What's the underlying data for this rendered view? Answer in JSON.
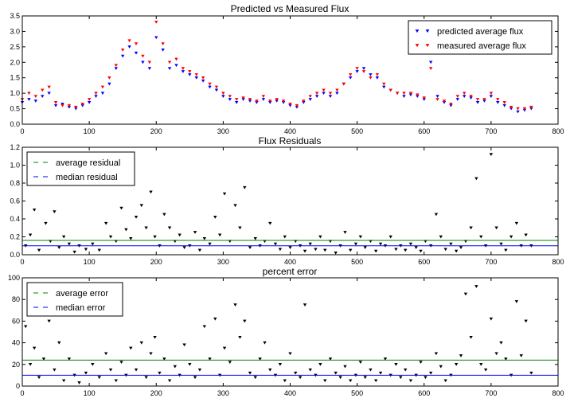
{
  "chart_data": [
    {
      "type": "scatter",
      "title": "Predicted vs Measured Flux",
      "xlim": [
        0,
        800
      ],
      "ylim": [
        0,
        3.5
      ],
      "xticks": [
        0,
        100,
        200,
        300,
        400,
        500,
        600,
        700,
        800
      ],
      "yticks": [
        0.0,
        0.5,
        1.0,
        1.5,
        2.0,
        2.5,
        3.0,
        3.5
      ],
      "ytick_labels": [
        "0.0",
        "0.5",
        "1.0",
        "1.5",
        "2.0",
        "2.5",
        "3.0",
        "3.5"
      ],
      "legend_position": "top-right",
      "series": [
        {
          "name": "predicted average flux",
          "color": "#0000ff",
          "marker": "triangle-down",
          "x": [
            0,
            10,
            20,
            30,
            40,
            50,
            60,
            70,
            80,
            90,
            100,
            110,
            120,
            130,
            140,
            150,
            160,
            170,
            180,
            190,
            200,
            210,
            220,
            230,
            240,
            250,
            260,
            270,
            280,
            290,
            300,
            310,
            320,
            330,
            340,
            350,
            360,
            370,
            380,
            390,
            400,
            410,
            420,
            430,
            440,
            450,
            460,
            470,
            480,
            490,
            500,
            510,
            520,
            530,
            540,
            550,
            560,
            570,
            580,
            590,
            600,
            610,
            620,
            630,
            640,
            650,
            660,
            670,
            680,
            690,
            700,
            710,
            720,
            730,
            740,
            750,
            760
          ],
          "y": [
            0.7,
            0.8,
            0.75,
            0.9,
            1.0,
            0.6,
            0.65,
            0.55,
            0.5,
            0.6,
            0.7,
            0.9,
            1.0,
            1.3,
            1.8,
            2.2,
            2.5,
            2.3,
            2.0,
            1.8,
            2.8,
            2.4,
            1.8,
            1.9,
            1.7,
            1.6,
            1.5,
            1.4,
            1.2,
            1.1,
            0.9,
            0.8,
            0.7,
            0.8,
            0.75,
            0.7,
            0.8,
            0.7,
            0.75,
            0.7,
            0.6,
            0.55,
            0.7,
            0.8,
            0.9,
            1.0,
            0.9,
            1.0,
            1.3,
            1.5,
            1.7,
            1.8,
            1.6,
            1.5,
            1.2,
            1.1,
            1.0,
            0.9,
            0.95,
            0.9,
            0.8,
            2.0,
            0.9,
            0.7,
            0.6,
            0.8,
            0.9,
            0.85,
            0.7,
            0.75,
            0.9,
            0.7,
            0.6,
            0.5,
            0.4,
            0.45,
            0.5
          ]
        },
        {
          "name": "measured average flux",
          "color": "#ff0000",
          "marker": "triangle-down",
          "x": [
            0,
            10,
            20,
            30,
            40,
            50,
            60,
            70,
            80,
            90,
            100,
            110,
            120,
            130,
            140,
            150,
            160,
            170,
            180,
            190,
            200,
            210,
            220,
            230,
            240,
            250,
            260,
            270,
            280,
            290,
            300,
            310,
            320,
            330,
            340,
            350,
            360,
            370,
            380,
            390,
            400,
            410,
            420,
            430,
            440,
            450,
            460,
            470,
            480,
            490,
            500,
            510,
            520,
            530,
            540,
            550,
            560,
            570,
            580,
            590,
            600,
            610,
            620,
            630,
            640,
            650,
            660,
            670,
            680,
            690,
            700,
            710,
            720,
            730,
            740,
            750,
            760
          ],
          "y": [
            0.8,
            1.0,
            0.9,
            1.1,
            1.2,
            0.7,
            0.6,
            0.6,
            0.55,
            0.65,
            0.8,
            1.0,
            1.2,
            1.5,
            1.9,
            2.4,
            2.7,
            2.6,
            2.2,
            2.0,
            3.3,
            2.6,
            2.0,
            2.1,
            1.8,
            1.7,
            1.6,
            1.5,
            1.3,
            1.2,
            1.0,
            0.9,
            0.8,
            0.85,
            0.8,
            0.75,
            0.9,
            0.75,
            0.8,
            0.75,
            0.65,
            0.6,
            0.75,
            0.9,
            1.0,
            1.1,
            1.0,
            1.1,
            1.3,
            1.6,
            1.8,
            1.7,
            1.5,
            1.6,
            1.3,
            1.1,
            1.0,
            1.0,
            1.0,
            0.95,
            0.85,
            1.8,
            0.8,
            0.75,
            0.65,
            0.9,
            1.0,
            0.9,
            0.8,
            0.8,
            1.0,
            0.8,
            0.7,
            0.55,
            0.5,
            0.5,
            0.55
          ]
        }
      ]
    },
    {
      "type": "scatter",
      "title": "Flux Residuals",
      "xlim": [
        0,
        800
      ],
      "ylim": [
        0,
        1.2
      ],
      "xticks": [
        0,
        100,
        200,
        300,
        400,
        500,
        600,
        700,
        800
      ],
      "yticks": [
        0.0,
        0.2,
        0.4,
        0.6,
        0.8,
        1.0,
        1.2
      ],
      "ytick_labels": [
        "0.0",
        "0.2",
        "0.4",
        "0.6",
        "0.8",
        "1.0",
        "1.2"
      ],
      "legend_position": "top-left",
      "series": [
        {
          "name": "residuals",
          "color": "#000000",
          "marker": "triangle-down",
          "x": [
            5,
            12,
            18,
            25,
            35,
            42,
            48,
            55,
            62,
            70,
            78,
            85,
            95,
            105,
            115,
            125,
            132,
            140,
            148,
            155,
            162,
            170,
            178,
            185,
            192,
            198,
            205,
            212,
            220,
            228,
            235,
            242,
            250,
            258,
            265,
            272,
            280,
            288,
            295,
            302,
            310,
            318,
            325,
            332,
            340,
            348,
            355,
            362,
            370,
            378,
            385,
            392,
            400,
            408,
            415,
            422,
            430,
            438,
            445,
            452,
            460,
            468,
            475,
            482,
            490,
            498,
            505,
            512,
            520,
            528,
            535,
            542,
            550,
            558,
            565,
            572,
            580,
            588,
            595,
            602,
            610,
            618,
            625,
            632,
            640,
            648,
            655,
            662,
            670,
            678,
            685,
            692,
            700,
            708,
            715,
            722,
            730,
            738,
            745,
            752,
            760
          ],
          "y": [
            0.1,
            0.22,
            0.5,
            0.05,
            0.35,
            0.15,
            0.48,
            0.08,
            0.2,
            0.12,
            0.03,
            0.1,
            0.06,
            0.12,
            0.05,
            0.35,
            0.2,
            0.15,
            0.52,
            0.28,
            0.18,
            0.42,
            0.55,
            0.3,
            0.7,
            0.2,
            0.1,
            0.45,
            0.3,
            0.15,
            0.22,
            0.08,
            0.1,
            0.25,
            0.05,
            0.18,
            0.12,
            0.42,
            0.22,
            0.68,
            0.15,
            0.55,
            0.3,
            0.75,
            0.08,
            0.18,
            0.1,
            0.15,
            0.35,
            0.12,
            0.06,
            0.2,
            0.08,
            0.15,
            0.1,
            0.04,
            0.12,
            0.06,
            0.2,
            0.05,
            0.15,
            0.02,
            0.1,
            0.25,
            0.05,
            0.12,
            0.2,
            0.08,
            0.15,
            0.04,
            0.12,
            0.1,
            0.2,
            0.06,
            0.1,
            0.05,
            0.12,
            0.08,
            0.04,
            0.15,
            0.1,
            0.45,
            0.2,
            0.06,
            0.12,
            0.04,
            0.08,
            0.15,
            0.3,
            0.85,
            0.2,
            0.1,
            1.12,
            0.3,
            0.12,
            0.05,
            0.2,
            0.35,
            0.1,
            0.22,
            0.1
          ]
        },
        {
          "name": "average residual",
          "color": "#008000",
          "line": true,
          "value": 0.16
        },
        {
          "name": "median residual",
          "color": "#0000ff",
          "line": true,
          "value": 0.1
        }
      ]
    },
    {
      "type": "scatter",
      "title": "percent error",
      "xlim": [
        0,
        800
      ],
      "ylim": [
        0,
        100
      ],
      "xticks": [
        0,
        100,
        200,
        300,
        400,
        500,
        600,
        700,
        800
      ],
      "yticks": [
        0,
        20,
        40,
        60,
        80,
        100
      ],
      "ytick_labels": [
        "0",
        "20",
        "40",
        "60",
        "80",
        "100"
      ],
      "legend_position": "top-left",
      "series": [
        {
          "name": "percent error",
          "color": "#000000",
          "marker": "triangle-down",
          "x": [
            5,
            12,
            18,
            25,
            32,
            40,
            48,
            55,
            62,
            70,
            78,
            85,
            95,
            105,
            115,
            125,
            132,
            140,
            148,
            155,
            162,
            170,
            178,
            185,
            192,
            198,
            205,
            212,
            220,
            228,
            235,
            242,
            250,
            258,
            265,
            272,
            280,
            288,
            295,
            302,
            310,
            318,
            325,
            332,
            340,
            348,
            355,
            362,
            370,
            378,
            385,
            392,
            400,
            408,
            415,
            422,
            430,
            438,
            445,
            452,
            460,
            468,
            475,
            482,
            490,
            498,
            505,
            512,
            520,
            528,
            535,
            542,
            550,
            558,
            565,
            572,
            580,
            588,
            595,
            602,
            610,
            618,
            625,
            632,
            640,
            648,
            655,
            662,
            670,
            678,
            685,
            692,
            700,
            708,
            715,
            722,
            730,
            738,
            745,
            752,
            760
          ],
          "y": [
            55,
            20,
            35,
            8,
            25,
            60,
            15,
            40,
            5,
            25,
            10,
            3,
            12,
            20,
            8,
            30,
            15,
            5,
            22,
            10,
            35,
            15,
            40,
            8,
            30,
            45,
            12,
            25,
            5,
            18,
            10,
            38,
            20,
            8,
            15,
            55,
            25,
            62,
            10,
            35,
            22,
            75,
            45,
            60,
            12,
            8,
            25,
            40,
            15,
            10,
            20,
            5,
            30,
            12,
            8,
            75,
            15,
            10,
            20,
            5,
            25,
            12,
            8,
            18,
            5,
            10,
            22,
            8,
            15,
            5,
            12,
            25,
            10,
            20,
            8,
            15,
            5,
            10,
            22,
            8,
            12,
            30,
            18,
            5,
            10,
            20,
            28,
            85,
            45,
            92,
            20,
            15,
            62,
            30,
            40,
            25,
            10,
            78,
            28,
            60,
            12
          ]
        },
        {
          "name": "average error",
          "color": "#008000",
          "line": true,
          "value": 24
        },
        {
          "name": "median error",
          "color": "#0000ff",
          "line": true,
          "value": 10
        }
      ]
    }
  ]
}
